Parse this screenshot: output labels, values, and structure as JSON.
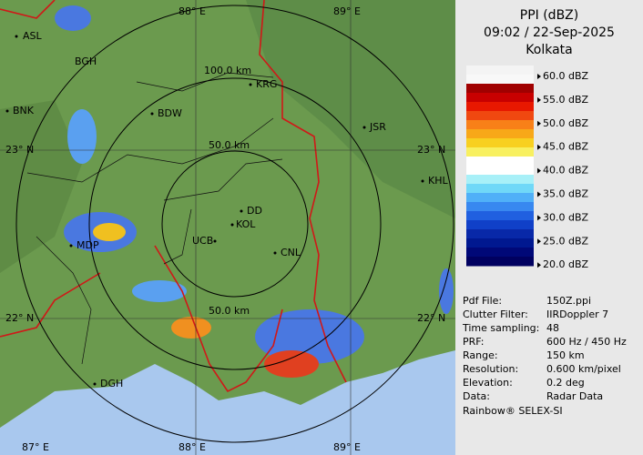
{
  "header": {
    "product": "PPI (dBZ)",
    "datetime": "09:02 / 22-Sep-2025",
    "site": "Kolkata"
  },
  "legend": {
    "labels": [
      "60.0 dBZ",
      "55.0 dBZ",
      "50.0 dBZ",
      "45.0 dBZ",
      "40.0 dBZ",
      "35.0 dBZ",
      "30.0 dBZ",
      "25.0 dBZ",
      "20.0 dBZ"
    ]
  },
  "info": {
    "rows": [
      [
        "Pdf File:",
        "150Z.ppi"
      ],
      [
        "Clutter Filter:",
        "IIRDoppler 7"
      ],
      [
        "Time sampling:",
        "48"
      ],
      [
        "PRF:",
        "600 Hz / 450 Hz"
      ],
      [
        "Range:",
        "150 km"
      ],
      [
        "Resolution:",
        "0.600 km/pixel"
      ],
      [
        "Elevation:",
        "0.2 deg"
      ],
      [
        "Data:",
        "Radar Data"
      ]
    ],
    "footer": "Rainbow® SELEX-SI"
  },
  "map": {
    "places": [
      "ASL",
      "BGH",
      "BNK",
      "BDW",
      "KRG",
      "JSR",
      "KHL",
      "MDP",
      "UCB",
      "DD",
      "KOL",
      "CNL",
      "DGH"
    ],
    "range_labels": [
      "100.0 km",
      "50.0 km",
      "50.0 km"
    ],
    "grid_labels": [
      "88° E",
      "89° E",
      "23° N",
      "23° N",
      "22° N",
      "22° N",
      "87° E",
      "88° E",
      "89° E"
    ]
  }
}
